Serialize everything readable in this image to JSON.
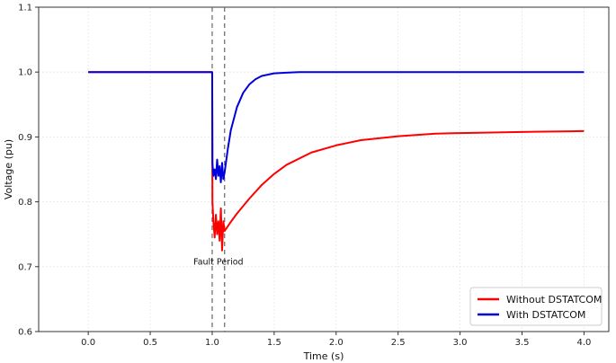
{
  "chart_data": {
    "type": "line",
    "title": "",
    "xlabel": "Time (s)",
    "ylabel": "Voltage (pu)",
    "xlim": [
      -0.4,
      4.2
    ],
    "ylim": [
      0.6,
      1.1
    ],
    "xticks": [
      "0.0",
      "0.5",
      "1.0",
      "1.5",
      "2.0",
      "2.5",
      "3.0",
      "3.5",
      "4.0"
    ],
    "yticks": [
      "0.6",
      "0.7",
      "0.8",
      "0.9",
      "1.0",
      "1.1"
    ],
    "grid": true,
    "legend_position": "bottom-right",
    "fault_lines_x": [
      1.0,
      1.1
    ],
    "annotation": {
      "text": "Fault Period",
      "x": 1.05,
      "y": 0.703
    },
    "series": [
      {
        "name": "Without DSTATCOM",
        "color": "#ff0000",
        "x": [
          0.0,
          0.5,
          1.0,
          1.002,
          1.01,
          1.02,
          1.03,
          1.04,
          1.05,
          1.06,
          1.07,
          1.08,
          1.09,
          1.1,
          1.15,
          1.2,
          1.3,
          1.4,
          1.5,
          1.6,
          1.8,
          2.0,
          2.2,
          2.5,
          2.8,
          3.0,
          3.3,
          3.6,
          4.0
        ],
        "y": [
          1.0,
          1.0,
          1.0,
          0.8,
          0.77,
          0.745,
          0.78,
          0.75,
          0.77,
          0.74,
          0.79,
          0.725,
          0.77,
          0.755,
          0.769,
          0.782,
          0.805,
          0.826,
          0.843,
          0.857,
          0.876,
          0.887,
          0.895,
          0.901,
          0.905,
          0.906,
          0.907,
          0.908,
          0.909
        ]
      },
      {
        "name": "With DSTATCOM",
        "color": "#0000dd",
        "x": [
          0.0,
          0.5,
          1.0,
          1.002,
          1.01,
          1.02,
          1.03,
          1.04,
          1.05,
          1.06,
          1.07,
          1.08,
          1.09,
          1.1,
          1.125,
          1.15,
          1.2,
          1.25,
          1.3,
          1.35,
          1.4,
          1.5,
          1.6,
          1.7,
          2.0,
          2.5,
          3.0,
          3.5,
          4.0
        ],
        "y": [
          1.0,
          1.0,
          1.0,
          0.86,
          0.84,
          0.85,
          0.835,
          0.865,
          0.84,
          0.855,
          0.83,
          0.86,
          0.835,
          0.845,
          0.88,
          0.91,
          0.946,
          0.968,
          0.981,
          0.989,
          0.994,
          0.998,
          0.999,
          1.0,
          1.0,
          1.0,
          1.0,
          1.0,
          1.0
        ]
      }
    ]
  }
}
